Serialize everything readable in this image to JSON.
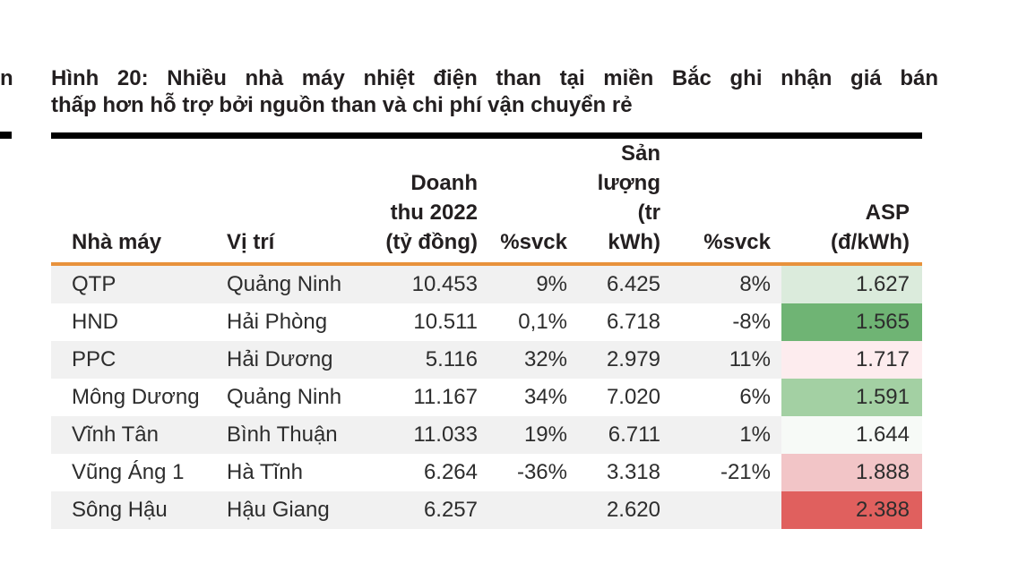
{
  "page": {
    "edge_fragment_text": "n"
  },
  "figure": {
    "title_line1": "Hình 20: Nhiều nhà máy nhiệt điện than tại miền Bắc ghi nhận giá bán",
    "title_line2": "thấp hơn hỗ trợ bởi nguồn than và chi phí vận chuyển rẻ"
  },
  "colors": {
    "accent_orange": "#e8923c",
    "row_alt_gray": "#f1f1f1",
    "top_rule_black": "#000000"
  },
  "table": {
    "headers": {
      "plant": "Nhà máy",
      "location": "Vị trí",
      "revenue": "Doanh\nthu 2022\n(tỷ đồng)",
      "revenue_yoy": "%svck",
      "output": "Sản\nlượng (tr\nkWh)",
      "output_yoy": "%svck",
      "asp": "ASP\n(đ/kWh)"
    },
    "rows": [
      {
        "plant": "QTP",
        "location": "Quảng Ninh",
        "revenue": "10.453",
        "revenue_yoy": "9%",
        "output": "6.425",
        "output_yoy": "8%",
        "asp": "1.627",
        "asp_color": "#dbebdc"
      },
      {
        "plant": "HND",
        "location": "Hải Phòng",
        "revenue": "10.511",
        "revenue_yoy": "0,1%",
        "output": "6.718",
        "output_yoy": "-8%",
        "asp": "1.565",
        "asp_color": "#6fb474"
      },
      {
        "plant": "PPC",
        "location": "Hải Dương",
        "revenue": "5.116",
        "revenue_yoy": "32%",
        "output": "2.979",
        "output_yoy": "11%",
        "asp": "1.717",
        "asp_color": "#fdecee"
      },
      {
        "plant": "Mông Dương",
        "location": "Quảng Ninh",
        "revenue": "11.167",
        "revenue_yoy": "34%",
        "output": "7.020",
        "output_yoy": "6%",
        "asp": "1.591",
        "asp_color": "#a3d0a3"
      },
      {
        "plant": "Vĩnh Tân",
        "location": "Bình Thuận",
        "revenue": "11.033",
        "revenue_yoy": "19%",
        "output": "6.711",
        "output_yoy": "1%",
        "asp": "1.644",
        "asp_color": "#f7faf7"
      },
      {
        "plant": "Vũng Áng 1",
        "location": "Hà Tĩnh",
        "revenue": "6.264",
        "revenue_yoy": "-36%",
        "output": "3.318",
        "output_yoy": "-21%",
        "asp": "1.888",
        "asp_color": "#f2c5c7"
      },
      {
        "plant": "Sông Hậu",
        "location": "Hậu Giang",
        "revenue": "6.257",
        "revenue_yoy": "",
        "output": "2.620",
        "output_yoy": "",
        "asp": "2.388",
        "asp_color": "#e0605e"
      }
    ]
  }
}
